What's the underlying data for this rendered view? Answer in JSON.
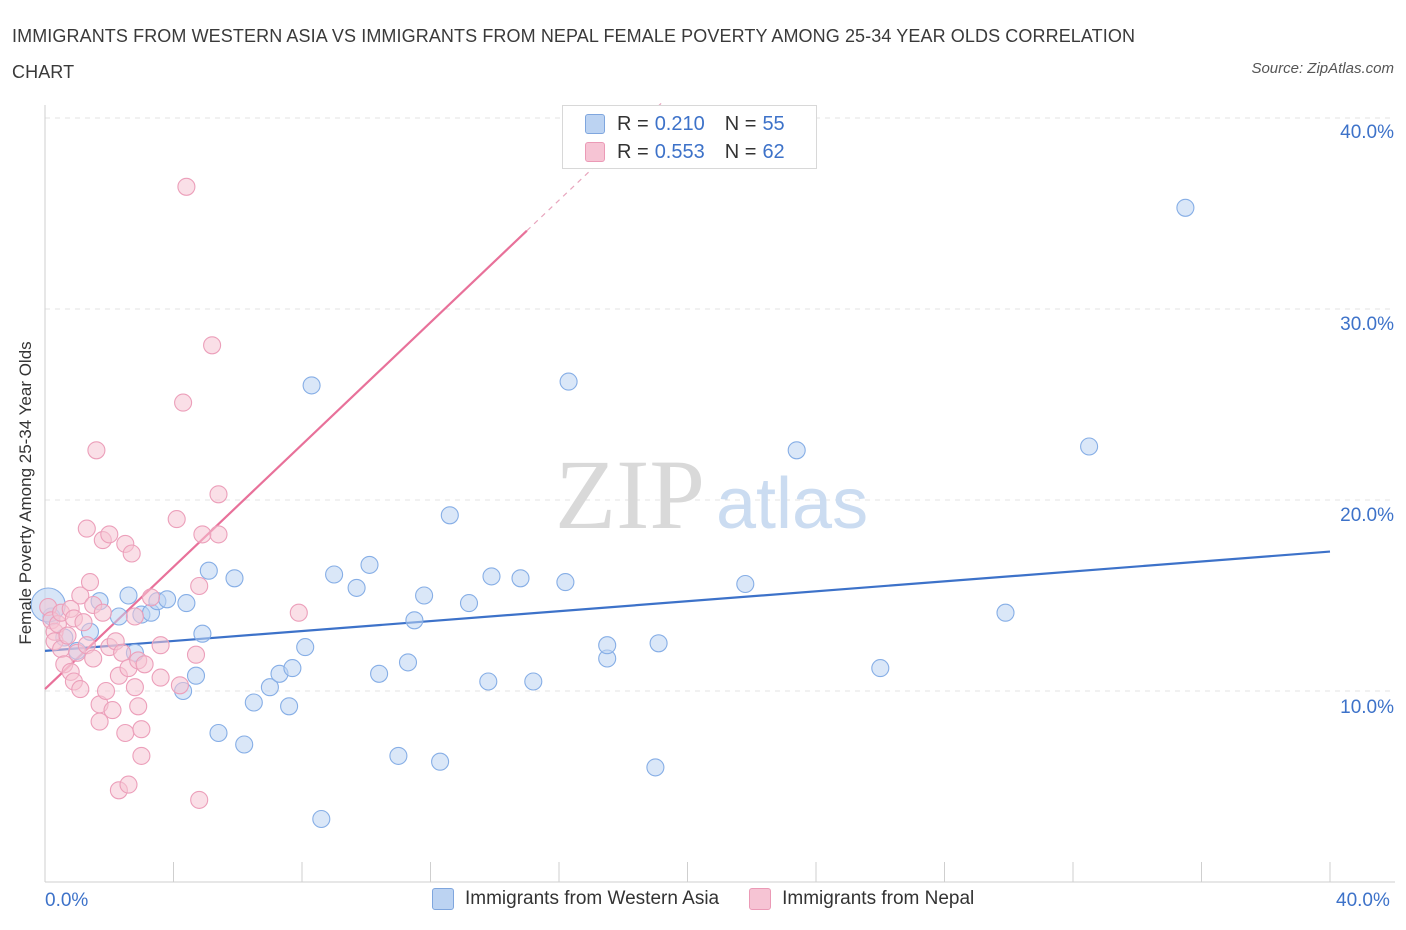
{
  "title": "IMMIGRANTS FROM WESTERN ASIA VS IMMIGRANTS FROM NEPAL FEMALE POVERTY AMONG 25-34 YEAR OLDS CORRELATION CHART",
  "source": "Source: ZipAtlas.com",
  "watermark": {
    "zip": "ZIP",
    "atlas": "atlas"
  },
  "legend": {
    "series1": {
      "r_label": "R =",
      "r_value": "0.210",
      "n_label": "N =",
      "n_value": "55"
    },
    "series2": {
      "r_label": "R =",
      "r_value": "0.553",
      "n_label": "N =",
      "n_value": "62"
    }
  },
  "colors": {
    "blue": "#3d72c9",
    "blue_fill": "#bcd3f2",
    "pink": "#e8719a",
    "pink_fill": "#f6c4d4",
    "grid": "#e3e3e3"
  },
  "chart_data": {
    "type": "scatter",
    "title": "IMMIGRANTS FROM WESTERN ASIA VS IMMIGRANTS FROM NEPAL FEMALE POVERTY AMONG 25-34 YEAR OLDS CORRELATION CHART",
    "ylabel": "Female Poverty Among 25-34 Year Olds",
    "xlabel": "",
    "xlim": [
      0,
      40
    ],
    "ylim": [
      0,
      40
    ],
    "x_tick_labels": [
      "0.0%",
      "40.0%"
    ],
    "y_tick_labels": [
      "10.0%",
      "20.0%",
      "30.0%",
      "40.0%"
    ],
    "y_ticks": [
      10,
      20,
      30,
      40
    ],
    "grid": true,
    "legend_position": "bottom",
    "series": [
      {
        "name": "Immigrants from Western Asia",
        "color": "#3d72c9",
        "trend": {
          "x": [
            0,
            40
          ],
          "y": [
            12.1,
            17.3
          ]
        },
        "points": [
          [
            0.2,
            13.9
          ],
          [
            0.6,
            12.8
          ],
          [
            1.0,
            12.1
          ],
          [
            1.4,
            13.1
          ],
          [
            1.7,
            14.7
          ],
          [
            2.3,
            13.9
          ],
          [
            2.6,
            15.0
          ],
          [
            2.8,
            12.0
          ],
          [
            3.0,
            14.0
          ],
          [
            3.3,
            14.1
          ],
          [
            3.5,
            14.7
          ],
          [
            3.8,
            14.8
          ],
          [
            4.4,
            14.6
          ],
          [
            4.3,
            10.0
          ],
          [
            4.7,
            10.8
          ],
          [
            4.9,
            13.0
          ],
          [
            5.1,
            16.3
          ],
          [
            5.4,
            7.8
          ],
          [
            5.9,
            15.9
          ],
          [
            6.2,
            7.2
          ],
          [
            6.5,
            9.4
          ],
          [
            7.0,
            10.2
          ],
          [
            7.3,
            10.9
          ],
          [
            7.7,
            11.2
          ],
          [
            7.6,
            9.2
          ],
          [
            8.1,
            12.3
          ],
          [
            8.3,
            26.0
          ],
          [
            8.6,
            3.3
          ],
          [
            9.0,
            16.1
          ],
          [
            9.7,
            15.4
          ],
          [
            10.1,
            16.6
          ],
          [
            10.4,
            10.9
          ],
          [
            11.0,
            6.6
          ],
          [
            11.3,
            11.5
          ],
          [
            11.5,
            13.7
          ],
          [
            11.8,
            15.0
          ],
          [
            12.3,
            6.3
          ],
          [
            12.6,
            19.2
          ],
          [
            13.2,
            14.6
          ],
          [
            13.9,
            16.0
          ],
          [
            13.8,
            10.5
          ],
          [
            14.8,
            15.9
          ],
          [
            15.2,
            10.5
          ],
          [
            16.2,
            15.7
          ],
          [
            17.5,
            11.7
          ],
          [
            16.3,
            26.2
          ],
          [
            17.5,
            12.4
          ],
          [
            19.0,
            6.0
          ],
          [
            19.1,
            12.5
          ],
          [
            21.8,
            15.6
          ],
          [
            26.0,
            11.2
          ],
          [
            23.4,
            22.6
          ],
          [
            29.9,
            14.1
          ],
          [
            32.5,
            22.8
          ],
          [
            35.5,
            35.3
          ]
        ]
      },
      {
        "name": "Immigrants from Nepal",
        "color": "#e8719a",
        "trend": {
          "x": [
            0,
            15
          ],
          "y": [
            10.1,
            34.1
          ]
        },
        "trend_dashed_extension": {
          "x": [
            15,
            19.2
          ],
          "y": [
            34.1,
            40.8
          ]
        },
        "points": [
          [
            0.1,
            14.4
          ],
          [
            0.2,
            13.7
          ],
          [
            0.3,
            13.1
          ],
          [
            0.3,
            12.6
          ],
          [
            0.4,
            13.5
          ],
          [
            0.5,
            12.2
          ],
          [
            0.5,
            14.1
          ],
          [
            0.6,
            11.4
          ],
          [
            0.7,
            12.9
          ],
          [
            0.8,
            14.3
          ],
          [
            0.8,
            11.0
          ],
          [
            0.9,
            10.5
          ],
          [
            0.9,
            13.8
          ],
          [
            1.0,
            12.0
          ],
          [
            1.1,
            10.1
          ],
          [
            1.1,
            15.0
          ],
          [
            1.2,
            13.6
          ],
          [
            1.3,
            18.5
          ],
          [
            1.3,
            12.4
          ],
          [
            1.4,
            15.7
          ],
          [
            1.5,
            11.7
          ],
          [
            1.5,
            14.5
          ],
          [
            1.6,
            22.6
          ],
          [
            1.7,
            8.4
          ],
          [
            1.7,
            9.3
          ],
          [
            1.8,
            17.9
          ],
          [
            1.8,
            14.1
          ],
          [
            1.9,
            10.0
          ],
          [
            2.0,
            18.2
          ],
          [
            2.0,
            12.3
          ],
          [
            2.1,
            9.0
          ],
          [
            2.2,
            12.6
          ],
          [
            2.3,
            10.8
          ],
          [
            2.3,
            4.8
          ],
          [
            2.4,
            12.0
          ],
          [
            2.5,
            7.8
          ],
          [
            2.5,
            17.7
          ],
          [
            2.6,
            11.2
          ],
          [
            2.6,
            5.1
          ],
          [
            2.7,
            17.2
          ],
          [
            2.8,
            13.9
          ],
          [
            2.8,
            10.2
          ],
          [
            2.9,
            11.6
          ],
          [
            2.9,
            9.2
          ],
          [
            3.0,
            8.0
          ],
          [
            3.0,
            6.6
          ],
          [
            3.1,
            11.4
          ],
          [
            3.3,
            14.9
          ],
          [
            3.6,
            12.4
          ],
          [
            3.6,
            10.7
          ],
          [
            4.2,
            10.3
          ],
          [
            4.1,
            19.0
          ],
          [
            4.3,
            25.1
          ],
          [
            4.4,
            36.4
          ],
          [
            4.7,
            11.9
          ],
          [
            4.8,
            4.3
          ],
          [
            4.8,
            15.5
          ],
          [
            4.9,
            18.2
          ],
          [
            5.2,
            28.1
          ],
          [
            5.4,
            20.3
          ],
          [
            5.4,
            18.2
          ],
          [
            7.9,
            14.1
          ]
        ]
      }
    ]
  }
}
